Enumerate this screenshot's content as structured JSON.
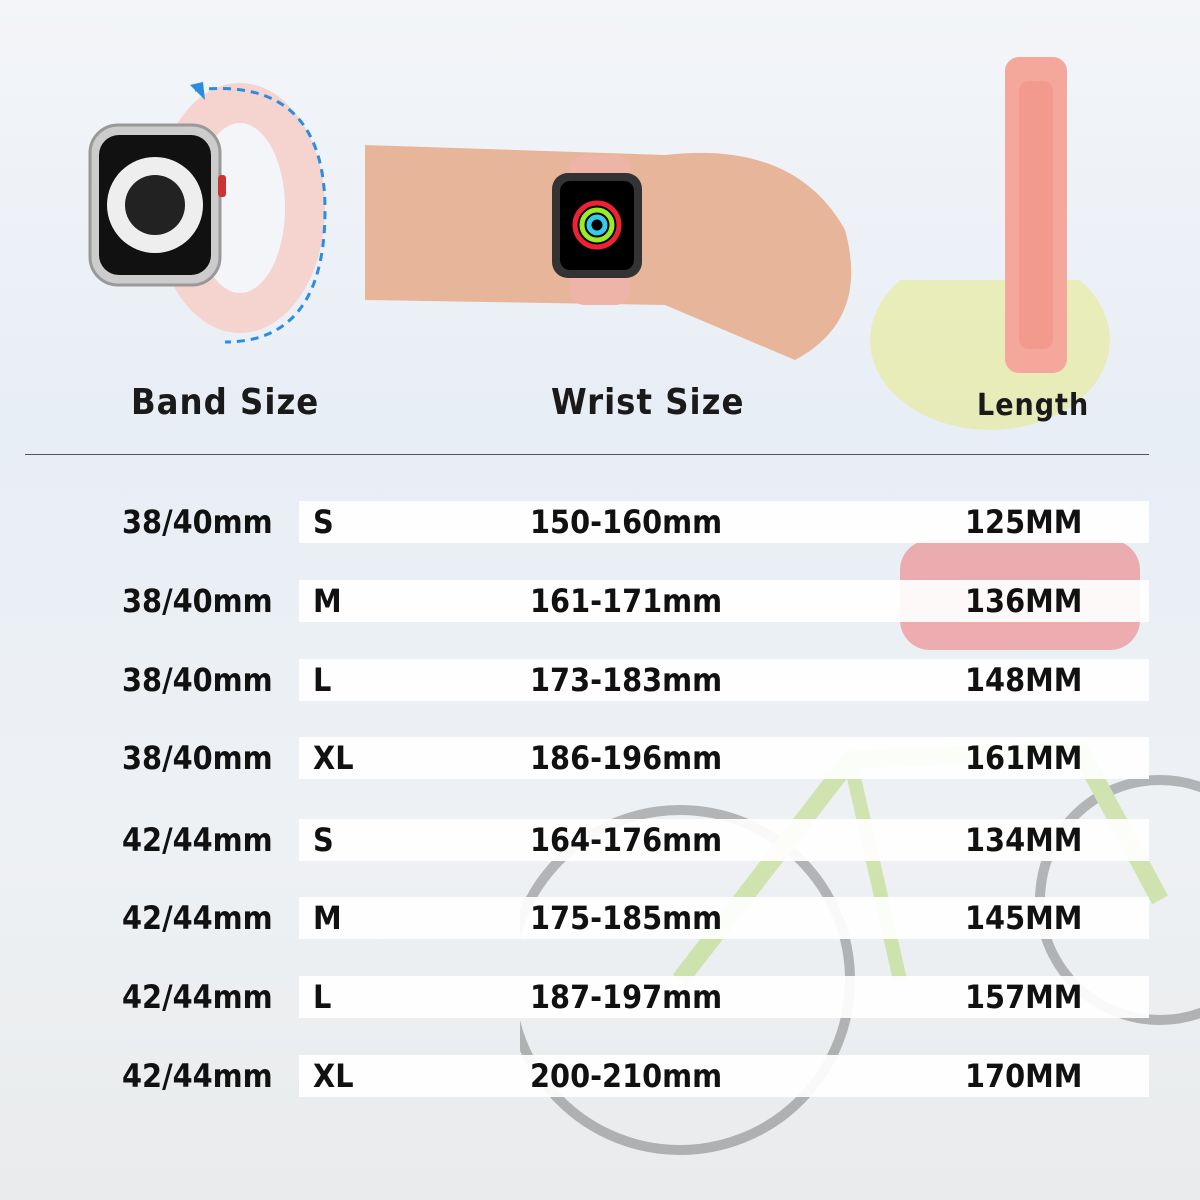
{
  "headers": {
    "band_size": "Band Size",
    "wrist_size": "Wrist Size",
    "length": "Length"
  },
  "colors": {
    "band_pink": "#f4a79a",
    "watch_band_pink": "#f5d3cf",
    "arrow_blue": "#2a8de0"
  },
  "rows": [
    {
      "band": "38/40mm",
      "size": "S",
      "wrist": "150-160mm",
      "length": "125MM"
    },
    {
      "band": "38/40mm",
      "size": "M",
      "wrist": "161-171mm",
      "length": "136MM"
    },
    {
      "band": "38/40mm",
      "size": "L",
      "wrist": "173-183mm",
      "length": "148MM"
    },
    {
      "band": "38/40mm",
      "size": "XL",
      "wrist": "186-196mm",
      "length": "161MM"
    },
    {
      "band": "42/44mm",
      "size": "S",
      "wrist": "164-176mm",
      "length": "134MM"
    },
    {
      "band": "42/44mm",
      "size": "M",
      "wrist": "175-185mm",
      "length": "145MM"
    },
    {
      "band": "42/44mm",
      "size": "L",
      "wrist": "187-197mm",
      "length": "157MM"
    },
    {
      "band": "42/44mm",
      "size": "XL",
      "wrist": "200-210mm",
      "length": "170MM"
    }
  ]
}
